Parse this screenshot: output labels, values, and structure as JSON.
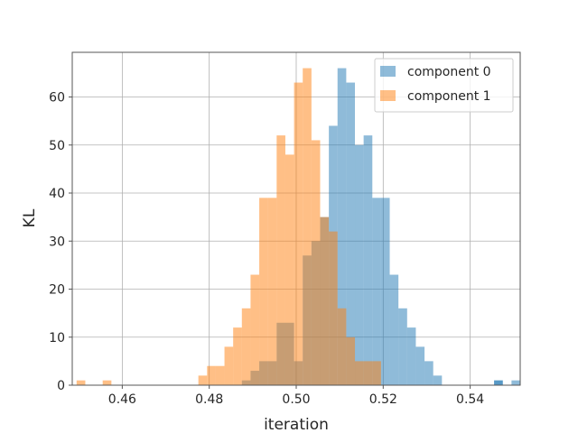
{
  "chart_data": {
    "type": "histogram",
    "title": "",
    "xlabel": "iteration",
    "ylabel": "KL",
    "xlim": [
      0.4485,
      0.5515
    ],
    "ylim": [
      0,
      69.3
    ],
    "x_ticks": [
      0.46,
      0.48,
      0.5,
      0.52,
      0.54
    ],
    "x_tick_labels": [
      "0.46",
      "0.48",
      "0.50",
      "0.52",
      "0.54"
    ],
    "y_ticks": [
      0,
      10,
      20,
      30,
      40,
      50,
      60
    ],
    "y_tick_labels": [
      "0",
      "10",
      "20",
      "30",
      "40",
      "50",
      "60"
    ],
    "grid": true,
    "legend": "top-right",
    "series": [
      {
        "name": "component 0",
        "color": "#1f77b4",
        "opacity": 0.5,
        "bin_start": 0.4775,
        "bin_width": 0.002,
        "counts": [
          0,
          0,
          0,
          0,
          0,
          1,
          3,
          5,
          5,
          13,
          13,
          5,
          27,
          30,
          35,
          54,
          66,
          63,
          50,
          52,
          39,
          39,
          23,
          16,
          12,
          8,
          5,
          2,
          0,
          0,
          0,
          0,
          0,
          0,
          1,
          0,
          0,
          0
        ]
      },
      {
        "name": "component 1",
        "color": "#ff7f0e",
        "opacity": 0.5,
        "bin_start": 0.4495,
        "bin_width": 0.002,
        "counts": [
          1,
          0,
          0,
          0,
          0,
          0,
          0,
          0,
          0,
          0,
          0,
          0,
          0,
          0,
          2,
          4,
          4,
          8,
          12,
          16,
          23,
          39,
          39,
          52,
          48,
          63,
          66,
          51,
          35,
          32,
          16,
          10,
          5,
          5,
          5,
          0,
          0,
          0,
          0,
          0
        ]
      }
    ],
    "extra_bins": [
      {
        "series": 1,
        "x": 0.4555,
        "count": 1
      },
      {
        "series": 0,
        "x": 0.5455,
        "count": 1
      },
      {
        "series": 0,
        "x": 0.5495,
        "count": 1
      }
    ]
  }
}
